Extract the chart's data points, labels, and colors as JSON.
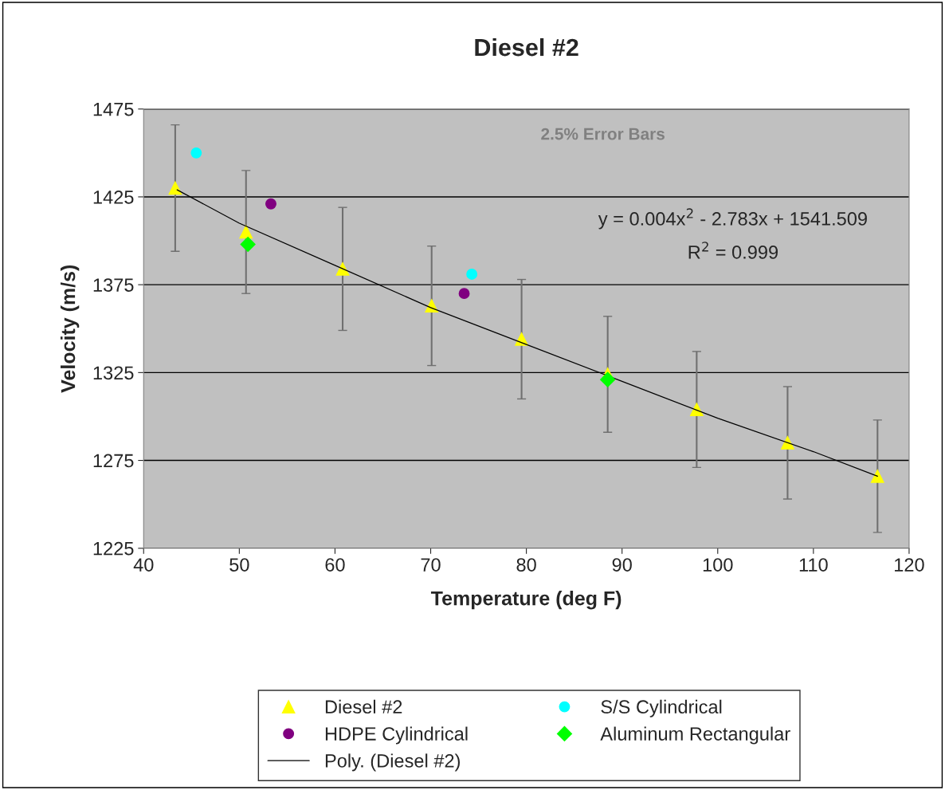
{
  "chart_data": {
    "type": "scatter",
    "title": "Diesel #2",
    "xlabel": "Temperature (deg F)",
    "ylabel": "Velocity (m/s)",
    "xlim": [
      40,
      120
    ],
    "xticks": [
      40,
      50,
      60,
      70,
      80,
      90,
      100,
      110,
      120
    ],
    "ylim": [
      1225,
      1475
    ],
    "yticks": [
      1225,
      1275,
      1325,
      1375,
      1425,
      1475
    ],
    "grid": "y",
    "legend": "bottom",
    "annotations": [
      "2.5% Error Bars",
      "y = 0.004x$^{2}$ - 2.783x + 1541.509",
      "R$^{2}$ = 0.999"
    ],
    "series": [
      {
        "name": "Diesel #2",
        "marker": "triangle",
        "color": "#ffff00",
        "x": [
          43.3,
          50.7,
          60.8,
          70.1,
          79.5,
          88.5,
          97.8,
          107.3,
          116.7
        ],
        "values": [
          1430,
          1405,
          1384,
          1363,
          1344,
          1324,
          1304,
          1285,
          1266
        ],
        "errors": [
          36,
          35,
          35,
          34,
          34,
          33,
          33,
          32,
          32
        ]
      },
      {
        "name": "S/S Cylindrical",
        "marker": "circle",
        "color": "#00ffff",
        "x": [
          45.5,
          74.3
        ],
        "values": [
          1450,
          1381
        ]
      },
      {
        "name": "HDPE Cylindrical",
        "marker": "circle",
        "color": "#800080",
        "x": [
          53.3,
          73.5
        ],
        "values": [
          1421,
          1370
        ]
      },
      {
        "name": "Aluminum Rectangular",
        "marker": "diamond",
        "color": "#00ff00",
        "x": [
          50.9,
          88.5
        ],
        "values": [
          1398,
          1321
        ]
      },
      {
        "name": "Poly. (Diesel #2)",
        "type": "line",
        "marker": "none",
        "line_style": "solid",
        "color": "#000000",
        "x": [
          43.5,
          50,
          60,
          70,
          80,
          90,
          100,
          110,
          116.7
        ],
        "values": [
          1429,
          1410,
          1386,
          1362,
          1341,
          1320,
          1299,
          1280,
          1266
        ]
      }
    ]
  }
}
